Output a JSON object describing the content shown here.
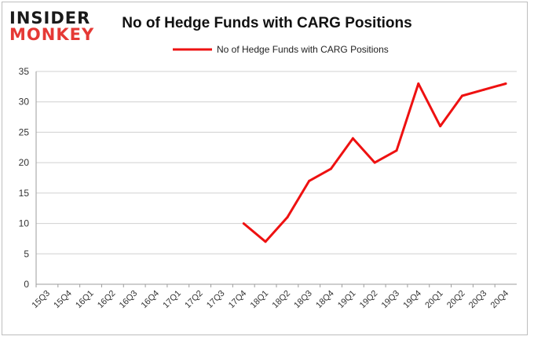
{
  "logo": {
    "line1": "INSIDER",
    "line2": "MONKEY"
  },
  "chart_data": {
    "type": "line",
    "title": "No of Hedge Funds with CARG Positions",
    "xlabel": "",
    "ylabel": "",
    "categories": [
      "15Q3",
      "15Q4",
      "16Q1",
      "16Q2",
      "16Q3",
      "16Q4",
      "17Q1",
      "17Q2",
      "17Q3",
      "17Q4",
      "18Q1",
      "18Q2",
      "18Q3",
      "18Q4",
      "19Q1",
      "19Q2",
      "19Q3",
      "19Q4",
      "20Q1",
      "20Q2",
      "20Q3",
      "20Q4"
    ],
    "series": [
      {
        "name": "No of Hedge Funds with CARG Positions",
        "color": "#ee1111",
        "values": [
          null,
          null,
          null,
          null,
          null,
          null,
          null,
          null,
          null,
          10,
          7,
          11,
          17,
          19,
          24,
          20,
          22,
          33,
          26,
          31,
          32,
          33
        ]
      }
    ],
    "ylim": [
      0,
      35
    ],
    "yticks": [
      0,
      5,
      10,
      15,
      20,
      25,
      30,
      35
    ],
    "grid": true,
    "legend": "top-center"
  }
}
